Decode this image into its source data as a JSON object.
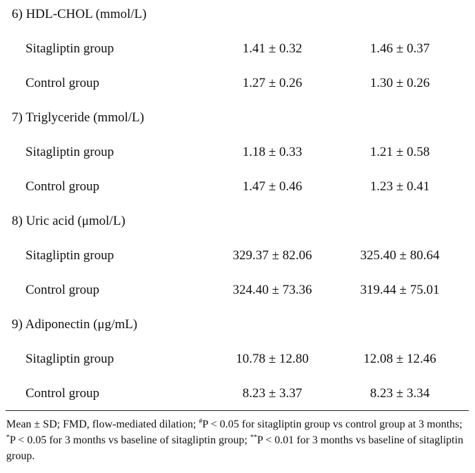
{
  "sections": [
    {
      "title": "6) HDL-CHOL (mmol/L)",
      "rows": [
        {
          "label": "Sitagliptin group",
          "v1": "1.41 ± 0.32",
          "v2": "1.46 ± 0.37"
        },
        {
          "label": "Control group",
          "v1": "1.27 ± 0.26",
          "v2": "1.30 ± 0.26"
        }
      ]
    },
    {
      "title": "7) Triglyceride (mmol/L)",
      "rows": [
        {
          "label": "Sitagliptin group",
          "v1": "1.18 ± 0.33",
          "v2": "1.21 ± 0.58"
        },
        {
          "label": "Control group",
          "v1": "1.47 ± 0.46",
          "v2": "1.23 ± 0.41"
        }
      ]
    },
    {
      "title": "8) Uric acid (μmol/L)",
      "rows": [
        {
          "label": "Sitagliptin group",
          "v1": "329.37 ± 82.06",
          "v2": "325.40 ± 80.64"
        },
        {
          "label": "Control group",
          "v1": "324.40 ± 73.36",
          "v2": "319.44 ± 75.01"
        }
      ]
    },
    {
      "title": "9) Adiponectin (μg/mL)",
      "rows": [
        {
          "label": "Sitagliptin group",
          "v1": "10.78 ± 12.80",
          "v2": "12.08 ± 12.46"
        },
        {
          "label": "Control group",
          "v1": "8.23 ± 3.37",
          "v2": "8.23 ± 3.34"
        }
      ]
    }
  ],
  "footnote": {
    "part1": "Mean ± SD; FMD, flow-mediated dilation; ",
    "mark1": "#",
    "part2": "P < 0.05 for sitagliptin group vs control group at 3 months; ",
    "mark2": "*",
    "part3": "P < 0.05 for 3 months vs baseline of sitagliptin group; ",
    "mark3": "**",
    "part4": "P < 0.01 for 3 months vs baseline of sitagliptin group."
  }
}
